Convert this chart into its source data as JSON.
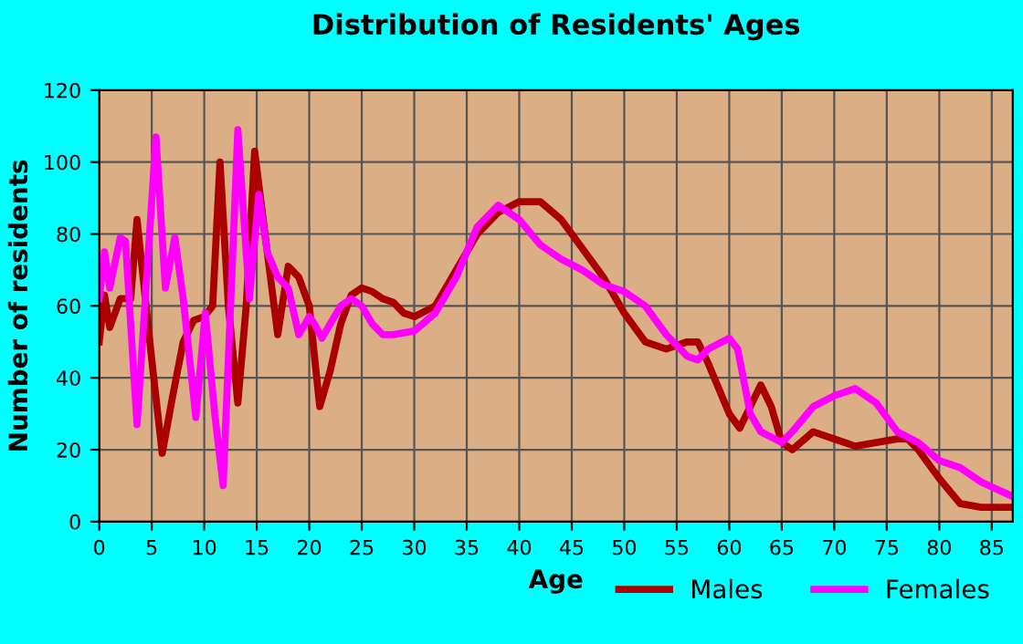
{
  "chart_data": {
    "type": "line",
    "title": "Distribution of Residents' Ages",
    "xlabel": "Age",
    "ylabel": "Number of residents",
    "xlim": [
      0,
      87
    ],
    "xticks": [
      0,
      5,
      10,
      15,
      20,
      25,
      30,
      35,
      40,
      45,
      50,
      55,
      60,
      65,
      70,
      75,
      80,
      85
    ],
    "ylim": [
      0,
      120
    ],
    "yticks": [
      0,
      20,
      40,
      60,
      80,
      100,
      120
    ],
    "grid": true,
    "legend": "bottom right",
    "marker": "none",
    "line_style": "solid",
    "series": [
      {
        "name": "Males",
        "color": "#aa0000",
        "x": [
          0,
          0.5,
          1,
          2,
          3,
          3.6,
          5,
          6,
          7,
          8,
          9,
          10,
          10.8,
          11.5,
          12.3,
          13.2,
          14,
          14.8,
          16,
          17,
          18,
          19,
          20,
          21,
          22,
          23,
          24,
          25,
          26,
          27,
          28,
          29,
          30,
          32,
          34,
          36,
          38,
          40,
          42,
          44,
          46,
          48,
          50,
          52,
          54,
          56,
          57,
          58,
          60,
          61,
          63,
          64,
          65,
          66,
          68,
          70,
          72,
          74,
          76,
          77,
          78,
          80,
          82,
          84,
          87
        ],
        "values": [
          50,
          63,
          54,
          62,
          62,
          84,
          45,
          19,
          35,
          50,
          56,
          57,
          60,
          100,
          60,
          33,
          60,
          103,
          75,
          52,
          71,
          68,
          60,
          32,
          42,
          55,
          63,
          65,
          64,
          62,
          61,
          58,
          57,
          60,
          70,
          80,
          86,
          89,
          89,
          84,
          76,
          68,
          58,
          50,
          48,
          50,
          50,
          44,
          30,
          26,
          38,
          32,
          22,
          20,
          25,
          23,
          21,
          22,
          23,
          23,
          20,
          12,
          5,
          4,
          4
        ]
      },
      {
        "name": "Females",
        "color": "#ff00ff",
        "x": [
          0,
          0.5,
          1,
          2,
          2.5,
          3.6,
          5.4,
          6.3,
          7.2,
          8,
          9.2,
          10.1,
          11,
          11.8,
          13.2,
          14.3,
          15.2,
          16,
          17,
          18,
          19,
          20,
          20.5,
          21.2,
          22,
          23,
          24,
          25,
          26,
          27,
          28,
          30,
          32,
          34,
          36,
          38,
          40,
          42,
          44,
          46,
          48,
          50,
          52,
          54,
          56,
          57,
          58,
          60,
          60.8,
          62,
          63,
          65,
          66,
          68,
          70,
          72,
          74,
          76,
          78,
          80,
          82,
          84,
          87
        ],
        "values": [
          62,
          75,
          65,
          79,
          78,
          27,
          107,
          65,
          79,
          62,
          29,
          58,
          30,
          10,
          109,
          62,
          91,
          75,
          68,
          65,
          52,
          57,
          55,
          51,
          55,
          60,
          62,
          60,
          55,
          52,
          52,
          53,
          58,
          68,
          82,
          88,
          84,
          77,
          73,
          70,
          66,
          64,
          60,
          52,
          46,
          45,
          48,
          51,
          48,
          30,
          25,
          22,
          25,
          32,
          35,
          37,
          33,
          25,
          22,
          17,
          15,
          11,
          7
        ]
      }
    ]
  }
}
